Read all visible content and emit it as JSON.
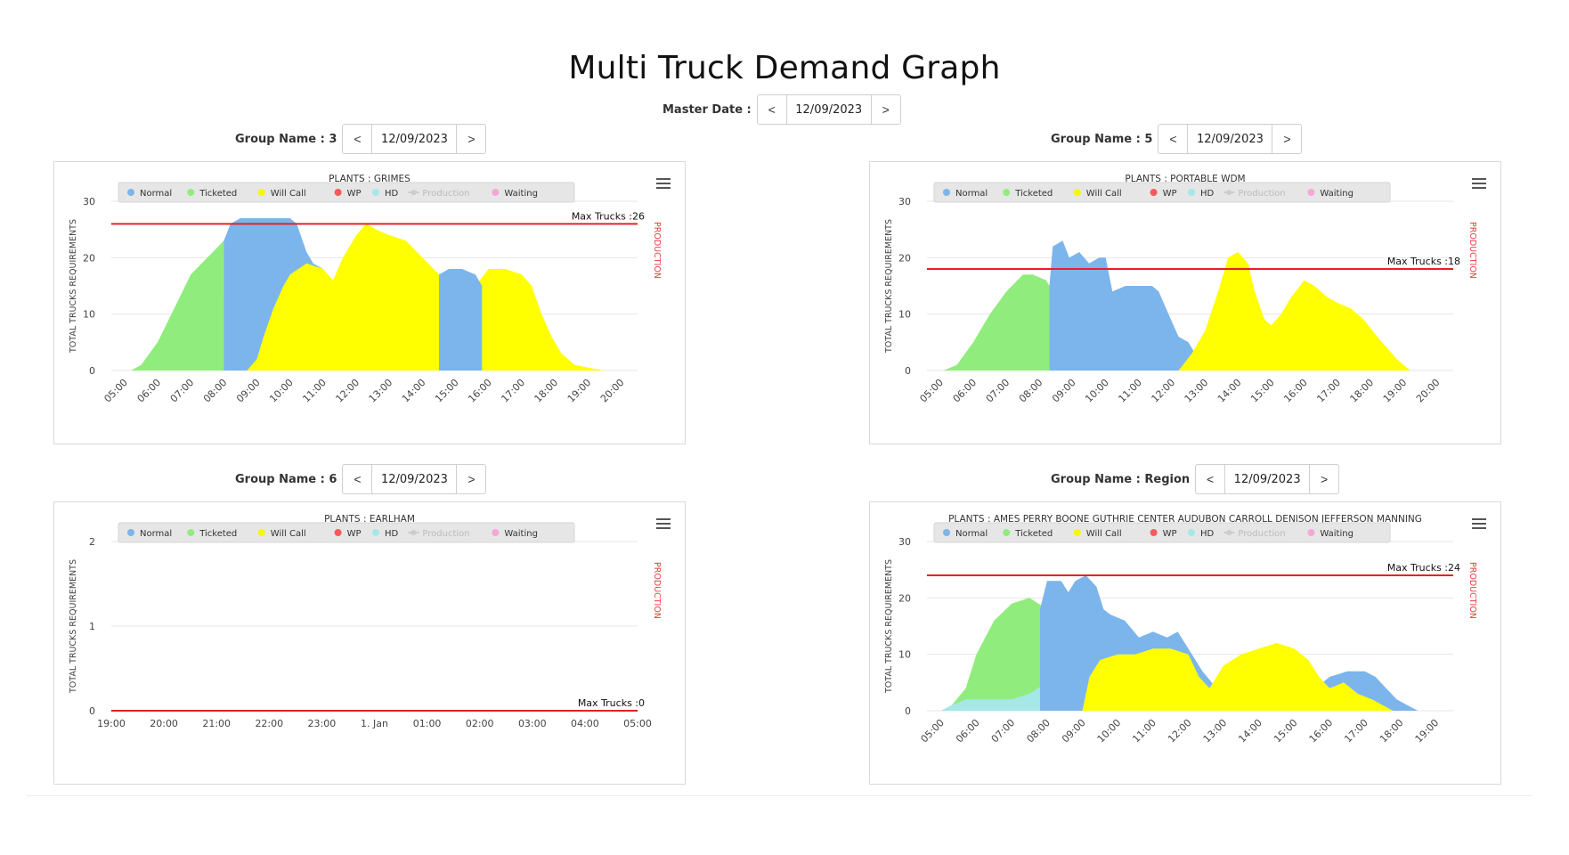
{
  "page": {
    "title": "Multi Truck Demand Graph",
    "master_date_label": "Master Date :",
    "master_date": "12/09/2023",
    "prev_label": "<",
    "next_label": ">"
  },
  "legend_items": [
    {
      "name": "Normal",
      "color": "#7cb5ec",
      "type": "dot"
    },
    {
      "name": "Ticketed",
      "color": "#90ed7d",
      "type": "dot"
    },
    {
      "name": "Will Call",
      "color": "#f7f700",
      "type": "dot"
    },
    {
      "name": "WP",
      "color": "#f45b5b",
      "type": "dot"
    },
    {
      "name": "HD",
      "color": "#a6e8e8",
      "type": "dot"
    },
    {
      "name": "Production",
      "color": "#cccccc",
      "type": "line",
      "disabled": true
    },
    {
      "name": "Waiting",
      "color": "#f7a6d6",
      "type": "dot"
    }
  ],
  "colors": {
    "normal": "#7cb5ec",
    "ticketed": "#90ed7d",
    "willcall": "#ffff00",
    "hd": "#a6e8e8",
    "maxline": "#e82020",
    "production_axis": "#e84040",
    "grid": "#e6e6e6"
  },
  "groups": [
    {
      "group_label": "Group Name : 3",
      "date": "12/09/2023"
    },
    {
      "group_label": "Group Name : 5",
      "date": "12/09/2023"
    },
    {
      "group_label": "Group Name : 6",
      "date": "12/09/2023"
    },
    {
      "group_label": "Group Name : Region",
      "date": "12/09/2023"
    }
  ],
  "chart_data": [
    {
      "type": "area",
      "title": "PLANTS : GRIMES",
      "ylabel": "TOTAL TRUCKS REQUIREMENTS",
      "y2label": "PRODUCTION",
      "ylim": [
        0,
        30
      ],
      "yticks": [
        "0",
        "10",
        "20",
        "30"
      ],
      "xlim": [
        4.6,
        20.5
      ],
      "xticks": [
        "05:00",
        "06:00",
        "07:00",
        "08:00",
        "09:00",
        "10:00",
        "11:00",
        "12:00",
        "13:00",
        "14:00",
        "15:00",
        "16:00",
        "17:00",
        "18:00",
        "19:00",
        "20:00"
      ],
      "x_rotated": true,
      "max_trucks": 26,
      "max_label": "Max Trucks :26",
      "legend": "top",
      "series": [
        {
          "name": "Ticketed",
          "color": "#90ed7d",
          "points": [
            [
              5.2,
              0
            ],
            [
              5.5,
              1
            ],
            [
              6,
              5
            ],
            [
              6.5,
              11
            ],
            [
              7,
              17
            ],
            [
              7.5,
              20
            ],
            [
              8,
              23
            ],
            [
              8.5,
              21
            ],
            [
              9,
              16
            ],
            [
              9.4,
              10
            ],
            [
              9.8,
              3
            ],
            [
              10.2,
              0
            ]
          ]
        },
        {
          "name": "Normal",
          "color": "#7cb5ec",
          "points": [
            [
              8,
              23
            ],
            [
              8.2,
              26
            ],
            [
              8.5,
              27
            ],
            [
              9,
              27
            ],
            [
              9.5,
              27
            ],
            [
              10,
              27
            ],
            [
              10.2,
              26
            ],
            [
              10.5,
              21
            ],
            [
              10.7,
              19
            ],
            [
              11,
              18
            ],
            [
              11.2,
              0
            ]
          ]
        },
        {
          "name": "Will Call",
          "color": "#ffff00",
          "points": [
            [
              8.7,
              0
            ],
            [
              9,
              2
            ],
            [
              9.2,
              6
            ],
            [
              9.5,
              11
            ],
            [
              9.8,
              15
            ],
            [
              10,
              17
            ],
            [
              10.5,
              19
            ],
            [
              11,
              18
            ],
            [
              11.3,
              16
            ],
            [
              11.6,
              20
            ],
            [
              12,
              24
            ],
            [
              12.3,
              26
            ],
            [
              12.6,
              25
            ],
            [
              13,
              24
            ],
            [
              13.5,
              23
            ],
            [
              14,
              20
            ],
            [
              14.5,
              17
            ],
            [
              14.8,
              16
            ],
            [
              15.2,
              16
            ],
            [
              15.6,
              15
            ],
            [
              16,
              18
            ],
            [
              16.5,
              18
            ],
            [
              17,
              17
            ],
            [
              17.3,
              15
            ],
            [
              17.6,
              10
            ],
            [
              17.9,
              6
            ],
            [
              18.2,
              3
            ],
            [
              18.6,
              1
            ],
            [
              19,
              0.5
            ],
            [
              19.5,
              0
            ]
          ]
        },
        {
          "name": "Normal (late)",
          "color": "#7cb5ec",
          "points": [
            [
              14.5,
              17
            ],
            [
              14.8,
              18
            ],
            [
              15.2,
              18
            ],
            [
              15.6,
              17
            ],
            [
              15.8,
              15
            ]
          ]
        }
      ]
    },
    {
      "type": "area",
      "title": "PLANTS : PORTABLE WDM",
      "ylabel": "TOTAL TRUCKS REQUIREMENTS",
      "y2label": "PRODUCTION",
      "ylim": [
        0,
        30
      ],
      "yticks": [
        "0",
        "10",
        "20",
        "30"
      ],
      "xlim": [
        4.6,
        20.5
      ],
      "xticks": [
        "05:00",
        "06:00",
        "07:00",
        "08:00",
        "09:00",
        "10:00",
        "11:00",
        "12:00",
        "13:00",
        "14:00",
        "15:00",
        "16:00",
        "17:00",
        "18:00",
        "19:00",
        "20:00"
      ],
      "x_rotated": true,
      "max_trucks": 18,
      "max_label": "Max Trucks :18",
      "legend": "top",
      "series": [
        {
          "name": "Ticketed",
          "color": "#90ed7d",
          "points": [
            [
              5.1,
              0
            ],
            [
              5.5,
              1
            ],
            [
              6,
              5
            ],
            [
              6.5,
              10
            ],
            [
              7,
              14
            ],
            [
              7.5,
              17
            ],
            [
              7.8,
              17
            ],
            [
              8.2,
              16
            ],
            [
              8.5,
              13
            ],
            [
              8.8,
              8
            ],
            [
              9,
              4
            ],
            [
              9.2,
              0
            ]
          ]
        },
        {
          "name": "Normal",
          "color": "#7cb5ec",
          "points": [
            [
              8.3,
              15
            ],
            [
              8.4,
              22
            ],
            [
              8.7,
              23
            ],
            [
              8.9,
              20
            ],
            [
              9.2,
              21
            ],
            [
              9.5,
              19
            ],
            [
              9.8,
              20
            ],
            [
              10,
              20
            ],
            [
              10.2,
              14
            ],
            [
              10.6,
              15
            ],
            [
              11,
              15
            ],
            [
              11.4,
              15
            ],
            [
              11.6,
              14
            ],
            [
              11.9,
              10
            ],
            [
              12.2,
              6
            ],
            [
              12.5,
              5
            ],
            [
              12.8,
              2
            ],
            [
              13,
              0
            ]
          ]
        },
        {
          "name": "Will Call",
          "color": "#ffff00",
          "points": [
            [
              12.2,
              0
            ],
            [
              12.6,
              3
            ],
            [
              13,
              7
            ],
            [
              13.4,
              14
            ],
            [
              13.7,
              20
            ],
            [
              14,
              21
            ],
            [
              14.3,
              19
            ],
            [
              14.5,
              14
            ],
            [
              14.8,
              9
            ],
            [
              15,
              8
            ],
            [
              15.3,
              10
            ],
            [
              15.6,
              13
            ],
            [
              16,
              16
            ],
            [
              16.3,
              15
            ],
            [
              16.7,
              13
            ],
            [
              17,
              12
            ],
            [
              17.4,
              11
            ],
            [
              17.8,
              9
            ],
            [
              18.2,
              6
            ],
            [
              18.5,
              4
            ],
            [
              18.8,
              2
            ],
            [
              19,
              1
            ],
            [
              19.2,
              0
            ]
          ]
        }
      ]
    },
    {
      "type": "area",
      "title": "PLANTS : EARLHAM",
      "ylabel": "TOTAL TRUCKS REQUIREMENTS",
      "y2label": "PRODUCTION",
      "ylim": [
        0,
        2
      ],
      "yticks": [
        "0",
        "1",
        "2"
      ],
      "xlim": [
        0,
        10
      ],
      "xticks": [
        "19:00",
        "20:00",
        "21:00",
        "22:00",
        "23:00",
        "1. Jan",
        "01:00",
        "02:00",
        "03:00",
        "04:00",
        "05:00"
      ],
      "x_rotated": false,
      "max_trucks": 0,
      "max_label": "Max Trucks :0",
      "legend": "top",
      "series": []
    },
    {
      "type": "area",
      "title": "PLANTS : AMES PERRY BOONE GUTHRIE CENTER AUDUBON CARROLL DENISON JEFFERSON MANNING",
      "ylabel": "TOTAL TRUCKS REQUIREMENTS",
      "y2label": "PRODUCTION",
      "ylim": [
        0,
        30
      ],
      "yticks": [
        "0",
        "10",
        "20",
        "30"
      ],
      "xlim": [
        4.6,
        19.5
      ],
      "xticks": [
        "05:00",
        "06:00",
        "07:00",
        "08:00",
        "09:00",
        "10:00",
        "11:00",
        "12:00",
        "13:00",
        "14:00",
        "15:00",
        "16:00",
        "17:00",
        "18:00",
        "19:00"
      ],
      "x_rotated": true,
      "max_trucks": 24,
      "max_label": "Max Trucks :24",
      "legend": "top",
      "series": [
        {
          "name": "Ticketed",
          "color": "#90ed7d",
          "points": [
            [
              5,
              0
            ],
            [
              5.3,
              1
            ],
            [
              5.7,
              4
            ],
            [
              6,
              10
            ],
            [
              6.5,
              16
            ],
            [
              7,
              19
            ],
            [
              7.5,
              20
            ],
            [
              8,
              18
            ],
            [
              8.3,
              14
            ],
            [
              8.6,
              9
            ],
            [
              8.9,
              5
            ],
            [
              9.2,
              2
            ],
            [
              9.5,
              0
            ]
          ]
        },
        {
          "name": "HD",
          "color": "#a6e8e8",
          "points": [
            [
              5,
              0
            ],
            [
              5.3,
              1
            ],
            [
              5.7,
              2
            ],
            [
              6,
              2
            ],
            [
              7,
              2
            ],
            [
              7.5,
              3
            ],
            [
              8,
              5
            ],
            [
              8.5,
              5
            ],
            [
              9,
              4
            ],
            [
              9.3,
              3
            ],
            [
              9.6,
              1
            ],
            [
              9.8,
              0
            ]
          ]
        },
        {
          "name": "Normal",
          "color": "#7cb5ec",
          "points": [
            [
              7.8,
              18
            ],
            [
              8,
              23
            ],
            [
              8.4,
              23
            ],
            [
              8.6,
              21
            ],
            [
              8.8,
              23
            ],
            [
              9.1,
              24
            ],
            [
              9.4,
              22
            ],
            [
              9.6,
              18
            ],
            [
              9.8,
              17
            ],
            [
              10.2,
              16
            ],
            [
              10.6,
              13
            ],
            [
              11,
              14
            ],
            [
              11.4,
              13
            ],
            [
              11.7,
              14
            ],
            [
              12,
              11
            ],
            [
              12.4,
              7
            ],
            [
              12.8,
              4
            ],
            [
              13,
              5
            ],
            [
              13.5,
              6
            ],
            [
              14,
              7
            ],
            [
              14.5,
              8
            ],
            [
              15,
              7
            ],
            [
              15.3,
              6
            ],
            [
              15.6,
              4
            ],
            [
              16,
              6
            ],
            [
              16.5,
              7
            ],
            [
              17,
              7
            ],
            [
              17.3,
              6
            ],
            [
              17.6,
              4
            ],
            [
              17.9,
              2
            ],
            [
              18.2,
              1
            ],
            [
              18.5,
              0
            ]
          ]
        },
        {
          "name": "Will Call",
          "color": "#ffff00",
          "points": [
            [
              9,
              0
            ],
            [
              9.2,
              6
            ],
            [
              9.5,
              9
            ],
            [
              10,
              10
            ],
            [
              10.5,
              10
            ],
            [
              11,
              11
            ],
            [
              11.5,
              11
            ],
            [
              12,
              10
            ],
            [
              12.3,
              6
            ],
            [
              12.6,
              4
            ],
            [
              13,
              8
            ],
            [
              13.5,
              10
            ],
            [
              14,
              11
            ],
            [
              14.5,
              12
            ],
            [
              15,
              11
            ],
            [
              15.4,
              9
            ],
            [
              15.7,
              6
            ],
            [
              16,
              4
            ],
            [
              16.4,
              5
            ],
            [
              16.8,
              3
            ],
            [
              17.2,
              2
            ],
            [
              17.5,
              1
            ],
            [
              17.8,
              0
            ]
          ]
        }
      ]
    }
  ]
}
